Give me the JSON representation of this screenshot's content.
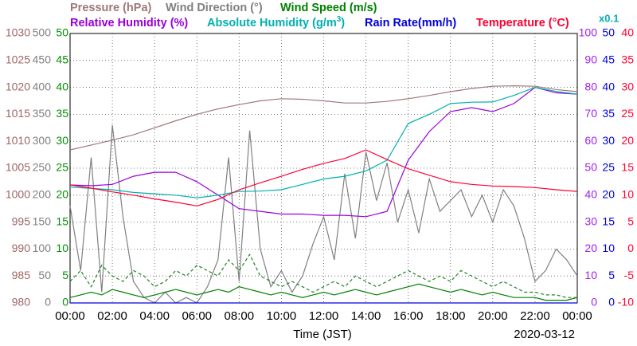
{
  "chart_data": {
    "type": "line",
    "xlabel": "Time (JST)",
    "date": "2020-03-12",
    "scale_note": "x0.1",
    "scale_note_color": "#00b0b0",
    "grid": true,
    "xlim": [
      0,
      24
    ],
    "xticks": [
      {
        "value": 0,
        "label": "00:00"
      },
      {
        "value": 2,
        "label": "02:00"
      },
      {
        "value": 4,
        "label": "04:00"
      },
      {
        "value": 6,
        "label": "06:00"
      },
      {
        "value": 8,
        "label": "08:00"
      },
      {
        "value": 10,
        "label": "10:00"
      },
      {
        "value": 12,
        "label": "12:00"
      },
      {
        "value": 14,
        "label": "14:00"
      },
      {
        "value": 16,
        "label": "16:00"
      },
      {
        "value": 18,
        "label": "18:00"
      },
      {
        "value": 20,
        "label": "20:00"
      },
      {
        "value": 22,
        "label": "22:00"
      },
      {
        "value": 24,
        "label": "00:00"
      }
    ],
    "y_axes": [
      {
        "side": "left",
        "color": "#a06464",
        "lim": [
          980,
          1030
        ],
        "ticks": [
          980,
          985,
          990,
          995,
          1000,
          1005,
          1010,
          1015,
          1020,
          1025,
          1030
        ]
      },
      {
        "side": "left",
        "color": "#808080",
        "lim": [
          0,
          500
        ],
        "ticks": [
          0,
          50,
          100,
          150,
          200,
          250,
          300,
          350,
          400,
          450,
          500
        ]
      },
      {
        "side": "left",
        "color": "#009000",
        "lim": [
          0,
          50
        ],
        "ticks": [
          0,
          5,
          10,
          15,
          20,
          25,
          30,
          35,
          40,
          45,
          50
        ]
      },
      {
        "side": "right",
        "color": "#a020f0",
        "lim": [
          0,
          100
        ],
        "ticks": [
          0,
          10,
          20,
          30,
          40,
          50,
          60,
          70,
          80,
          90,
          100
        ]
      },
      {
        "side": "right",
        "color": "#0000dd",
        "lim": [
          0,
          50
        ],
        "ticks": [
          0,
          5,
          10,
          15,
          20,
          25,
          30,
          35,
          40,
          45,
          50
        ]
      },
      {
        "side": "right",
        "color": "#ff0033",
        "lim": [
          -10,
          40
        ],
        "ticks": [
          -10,
          -5,
          0,
          5,
          10,
          15,
          20,
          25,
          30,
          35,
          40
        ]
      }
    ],
    "series": [
      {
        "name": [
          "Pressure (hPa)"
        ],
        "axis": 0,
        "color": "#a07878",
        "x": [
          0,
          1,
          2,
          3,
          4,
          5,
          6,
          7,
          8,
          9,
          10,
          11,
          12,
          13,
          14,
          15,
          16,
          17,
          18,
          19,
          20,
          21,
          22,
          23,
          24
        ],
        "values": [
          1008.4,
          1009.3,
          1010.2,
          1011.2,
          1012.5,
          1013.8,
          1015,
          1016,
          1016.8,
          1017.5,
          1017.9,
          1017.8,
          1017.5,
          1017.1,
          1017.1,
          1017.4,
          1017.9,
          1018.5,
          1019.2,
          1019.8,
          1020.2,
          1020.3,
          1020.2,
          1019.6,
          1019.2
        ]
      },
      {
        "name": [
          "Wind Direction (°)"
        ],
        "axis": 1,
        "color": "#808080",
        "x": [
          0,
          0.5,
          1,
          1.5,
          2,
          2.5,
          3,
          3.5,
          4,
          4.5,
          5,
          5.5,
          6,
          6.5,
          7,
          7.5,
          8,
          8.5,
          9,
          9.5,
          10,
          10.5,
          11,
          11.5,
          12,
          12.5,
          13,
          13.5,
          14,
          14.5,
          15,
          15.5,
          16,
          16.5,
          17,
          17.5,
          18,
          18.5,
          19,
          19.5,
          20,
          20.5,
          21,
          21.5,
          22,
          22.5,
          23,
          23.5,
          24
        ],
        "values": [
          180,
          60,
          270,
          20,
          330,
          160,
          40,
          10,
          0,
          20,
          0,
          10,
          0,
          30,
          80,
          270,
          40,
          320,
          100,
          30,
          60,
          20,
          50,
          110,
          160,
          80,
          240,
          120,
          280,
          190,
          260,
          150,
          210,
          130,
          230,
          170,
          190,
          210,
          160,
          200,
          150,
          210,
          180,
          120,
          40,
          60,
          100,
          80,
          50
        ]
      },
      {
        "name": [
          "Wind Speed (m/s)"
        ],
        "axis": 2,
        "color": "#008000",
        "x": [
          0,
          0.5,
          1,
          1.5,
          2,
          2.5,
          3,
          3.5,
          4,
          4.5,
          5,
          5.5,
          6,
          6.5,
          7,
          7.5,
          8,
          8.5,
          9,
          9.5,
          10,
          10.5,
          11,
          11.5,
          12,
          12.5,
          13,
          13.5,
          14,
          14.5,
          15,
          15.5,
          16,
          16.5,
          17,
          17.5,
          18,
          18.5,
          19,
          19.5,
          20,
          20.5,
          21,
          21.5,
          22,
          22.5,
          23,
          23.5,
          24
        ],
        "values": [
          1,
          1.5,
          2,
          1.5,
          2.5,
          2,
          1.5,
          1,
          1.5,
          2,
          2.5,
          2,
          1.5,
          2,
          2.5,
          2,
          3,
          2.5,
          2,
          1.5,
          2,
          1.5,
          1,
          1.5,
          2,
          1.5,
          2,
          2.5,
          2,
          1.5,
          2,
          2.5,
          3,
          3.5,
          3,
          2.5,
          2,
          2.5,
          2,
          1.5,
          2,
          1.5,
          1,
          1,
          1,
          0.5,
          0.5,
          0.5,
          1
        ]
      },
      {
        "axis": 2,
        "color": "#208020",
        "dashed": true,
        "x": [
          0,
          0.5,
          1,
          1.5,
          2,
          2.5,
          3,
          3.5,
          4,
          4.5,
          5,
          5.5,
          6,
          6.5,
          7,
          7.5,
          8,
          8.5,
          9,
          9.5,
          10,
          10.5,
          11,
          11.5,
          12,
          12.5,
          13,
          13.5,
          14,
          14.5,
          15,
          15.5,
          16,
          16.5,
          17,
          17.5,
          18,
          18.5,
          19,
          19.5,
          20,
          20.5,
          21,
          21.5,
          22,
          22.5,
          23,
          23.5,
          24
        ],
        "values": [
          4,
          6,
          3,
          7,
          5,
          4,
          6,
          5,
          3,
          4,
          6,
          5,
          7,
          6,
          5,
          8,
          6,
          9,
          5,
          4,
          3,
          4,
          3,
          2,
          3,
          4,
          3,
          5,
          4,
          3,
          4,
          5,
          6,
          5,
          4,
          5,
          4,
          6,
          5,
          4,
          3,
          4,
          3,
          2,
          2,
          1.5,
          1.5,
          1,
          1
        ]
      },
      {
        "name": [
          "Relative Humidity (%)"
        ],
        "axis": 3,
        "color": "#9900dd",
        "x": [
          0,
          1,
          2,
          3,
          4,
          5,
          6,
          7,
          8,
          9,
          10,
          11,
          12,
          13,
          14,
          15,
          16,
          17,
          18,
          19,
          20,
          21,
          22,
          23,
          24
        ],
        "values": [
          43.8,
          43.5,
          44,
          47,
          48.5,
          48.5,
          45,
          40,
          35,
          34,
          33,
          33,
          32.5,
          32.5,
          32,
          34,
          53,
          63.6,
          71,
          72.5,
          71,
          74,
          80,
          78,
          77.5
        ]
      },
      {
        "name": [
          "Absolute Humidity (g/m",
          "3",
          ")"
        ],
        "axis": 3,
        "color": "#00b0b0",
        "x": [
          0,
          1,
          2,
          3,
          4,
          5,
          6,
          7,
          8,
          9,
          10,
          11,
          12,
          13,
          14,
          15,
          16,
          17,
          18,
          19,
          20,
          21,
          22,
          23,
          24
        ],
        "values": [
          43,
          42.5,
          42,
          41,
          40.5,
          40,
          39,
          40,
          41.4,
          41.5,
          42,
          44,
          46,
          47,
          49,
          53,
          66.6,
          70,
          74,
          74.5,
          74.6,
          77,
          80,
          78.5,
          77.5
        ]
      },
      {
        "name": [
          "Rain Rate(mm/h)"
        ],
        "axis": 4,
        "color": "#0000dd",
        "x": [
          0,
          1,
          2,
          3,
          4,
          5,
          6,
          7,
          8,
          9,
          10,
          11,
          12,
          13,
          14,
          15,
          16,
          17,
          18,
          19,
          20,
          21,
          22,
          23,
          24
        ],
        "values": [
          0,
          0,
          0,
          0,
          0,
          0,
          0,
          0,
          0,
          0,
          0,
          0,
          0,
          0,
          0,
          0,
          0,
          0,
          0,
          0,
          0,
          0,
          0,
          0,
          0
        ]
      },
      {
        "name": [
          "Temperature (°C)"
        ],
        "axis": 5,
        "color": "#ff0033",
        "x": [
          0,
          1,
          2,
          3,
          4,
          5,
          6,
          7,
          8,
          9,
          10,
          11,
          12,
          13,
          14,
          15,
          16,
          17,
          18,
          19,
          20,
          21,
          22,
          23,
          24
        ],
        "values": [
          11.9,
          11.3,
          10.6,
          10,
          9.3,
          8.7,
          8,
          9.2,
          11,
          12.3,
          13.5,
          14.8,
          15.9,
          16.8,
          18.4,
          16.6,
          14.9,
          13.7,
          12.5,
          12,
          11.7,
          11.6,
          11.4,
          11,
          10.7
        ]
      }
    ]
  }
}
